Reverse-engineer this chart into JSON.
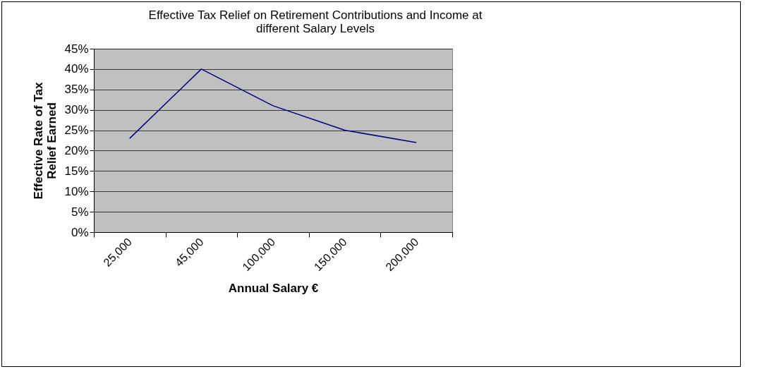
{
  "chart_data": {
    "type": "line",
    "title": "Effective Tax Relief on Retirement Contributions and Income at\ndifferent Salary Levels",
    "xlabel": "Annual Salary €",
    "ylabel": "Effective Rate of Tax\nRelief  Earned",
    "categories": [
      "25,000",
      "45,000",
      "100,000",
      "150,000",
      "200,000"
    ],
    "series": [
      {
        "color": "#000080",
        "values": [
          23,
          40,
          31,
          25,
          22
        ]
      }
    ],
    "ylim": [
      0,
      45
    ],
    "yticks": [
      {
        "value": 0,
        "label": "0%"
      },
      {
        "value": 5,
        "label": "5%"
      },
      {
        "value": 10,
        "label": "10%"
      },
      {
        "value": 15,
        "label": "15%"
      },
      {
        "value": 20,
        "label": "20%"
      },
      {
        "value": 25,
        "label": "25%"
      },
      {
        "value": 30,
        "label": "30%"
      },
      {
        "value": 35,
        "label": "35%"
      },
      {
        "value": 40,
        "label": "40%"
      },
      {
        "value": 45,
        "label": "45%"
      }
    ],
    "grid": "y",
    "legend": false,
    "marker": "none",
    "line_style": "solid"
  }
}
